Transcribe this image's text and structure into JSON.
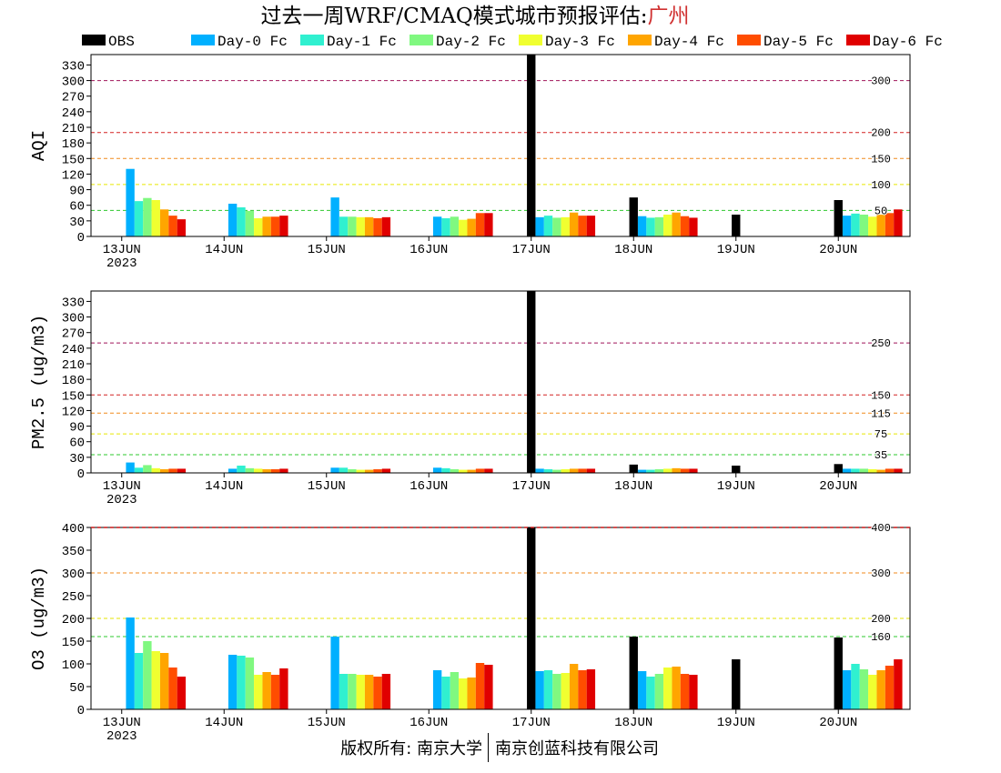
{
  "title": {
    "text": "过去一周WRF/CMAQ模式城市预报评估:",
    "city": "广州",
    "city_color": "#d03030"
  },
  "legend": {
    "placement": "top",
    "items": [
      {
        "name": "OBS",
        "color": "#000000"
      },
      {
        "name": "Day-0 Fc",
        "color": "#00b0ff"
      },
      {
        "name": "Day-1 Fc",
        "color": "#30f0d0"
      },
      {
        "name": "Day-2 Fc",
        "color": "#80f880"
      },
      {
        "name": "Day-3 Fc",
        "color": "#f0ff30"
      },
      {
        "name": "Day-4 Fc",
        "color": "#ffa500"
      },
      {
        "name": "Day-5 Fc",
        "color": "#ff4d00"
      },
      {
        "name": "Day-6 Fc",
        "color": "#e00000"
      }
    ]
  },
  "chart_data": [
    {
      "type": "bar",
      "ylabel": "AQI",
      "ylim": [
        0,
        350
      ],
      "yticks": [
        0,
        30,
        60,
        90,
        120,
        150,
        180,
        210,
        240,
        270,
        300,
        330
      ],
      "categories": [
        "13JUN",
        "14JUN",
        "15JUN",
        "16JUN",
        "17JUN",
        "18JUN",
        "19JUN",
        "20JUN"
      ],
      "year_label": "2023",
      "grid": false,
      "reference_lines": [
        {
          "value": 300,
          "label": "300",
          "color": "#a0145a"
        },
        {
          "value": 200,
          "label": "200",
          "color": "#d42020"
        },
        {
          "value": 150,
          "label": "150",
          "color": "#f08a1c"
        },
        {
          "value": 100,
          "label": "100",
          "color": "#e6e600"
        },
        {
          "value": 50,
          "label": "50",
          "color": "#2ec82e"
        }
      ],
      "series": [
        {
          "name": "OBS",
          "values": [
            null,
            null,
            null,
            null,
            350,
            75,
            42,
            70
          ]
        },
        {
          "name": "Day-0 Fc",
          "values": [
            130,
            63,
            75,
            38,
            37,
            39,
            null,
            40
          ]
        },
        {
          "name": "Day-1 Fc",
          "values": [
            68,
            56,
            38,
            35,
            40,
            36,
            null,
            44
          ]
        },
        {
          "name": "Day-2 Fc",
          "values": [
            74,
            49,
            38,
            38,
            36,
            37,
            null,
            42
          ]
        },
        {
          "name": "Day-3 Fc",
          "values": [
            70,
            35,
            37,
            32,
            37,
            42,
            null,
            38
          ]
        },
        {
          "name": "Day-4 Fc",
          "values": [
            52,
            38,
            37,
            34,
            46,
            46,
            null,
            42
          ]
        },
        {
          "name": "Day-5 Fc",
          "values": [
            40,
            38,
            35,
            45,
            40,
            39,
            null,
            45
          ]
        },
        {
          "name": "Day-6 Fc",
          "values": [
            33,
            40,
            37,
            45,
            40,
            36,
            null,
            52
          ]
        }
      ]
    },
    {
      "type": "bar",
      "ylabel": "PM2.5 (ug/m3)",
      "ylim": [
        0,
        350
      ],
      "yticks": [
        0,
        30,
        60,
        90,
        120,
        150,
        180,
        210,
        240,
        270,
        300,
        330
      ],
      "categories": [
        "13JUN",
        "14JUN",
        "15JUN",
        "16JUN",
        "17JUN",
        "18JUN",
        "19JUN",
        "20JUN"
      ],
      "year_label": "2023",
      "grid": false,
      "reference_lines": [
        {
          "value": 250,
          "label": "250",
          "color": "#a0145a"
        },
        {
          "value": 150,
          "label": "150",
          "color": "#d42020"
        },
        {
          "value": 115,
          "label": "115",
          "color": "#f08a1c"
        },
        {
          "value": 75,
          "label": "75",
          "color": "#e6e600"
        },
        {
          "value": 35,
          "label": "35",
          "color": "#2ec82e"
        }
      ],
      "series": [
        {
          "name": "OBS",
          "values": [
            null,
            null,
            null,
            null,
            350,
            16,
            14,
            17
          ]
        },
        {
          "name": "Day-0 Fc",
          "values": [
            20,
            8,
            10,
            10,
            8,
            6,
            null,
            8
          ]
        },
        {
          "name": "Day-1 Fc",
          "values": [
            10,
            14,
            10,
            9,
            7,
            6,
            null,
            8
          ]
        },
        {
          "name": "Day-2 Fc",
          "values": [
            15,
            9,
            7,
            7,
            6,
            7,
            null,
            8
          ]
        },
        {
          "name": "Day-3 Fc",
          "values": [
            9,
            8,
            6,
            6,
            7,
            8,
            null,
            7
          ]
        },
        {
          "name": "Day-4 Fc",
          "values": [
            7,
            7,
            6,
            6,
            8,
            9,
            null,
            6
          ]
        },
        {
          "name": "Day-5 Fc",
          "values": [
            8,
            7,
            7,
            8,
            8,
            8,
            null,
            8
          ]
        },
        {
          "name": "Day-6 Fc",
          "values": [
            8,
            8,
            8,
            8,
            8,
            8,
            null,
            8
          ]
        }
      ]
    },
    {
      "type": "bar",
      "ylabel": "O3 (ug/m3)",
      "ylim": [
        0,
        400
      ],
      "yticks": [
        0,
        50,
        100,
        150,
        200,
        250,
        300,
        350,
        400
      ],
      "categories": [
        "13JUN",
        "14JUN",
        "15JUN",
        "16JUN",
        "17JUN",
        "18JUN",
        "19JUN",
        "20JUN"
      ],
      "year_label": "2023",
      "grid": false,
      "reference_lines": [
        {
          "value": 400,
          "label": "400",
          "color": "#c81818"
        },
        {
          "value": 300,
          "label": "300",
          "color": "#f08a1c"
        },
        {
          "value": 200,
          "label": "200",
          "color": "#e6e600"
        },
        {
          "value": 160,
          "label": "160",
          "color": "#2ec82e"
        }
      ],
      "series": [
        {
          "name": "OBS",
          "values": [
            null,
            null,
            null,
            null,
            400,
            160,
            110,
            158
          ]
        },
        {
          "name": "Day-0 Fc",
          "values": [
            202,
            120,
            160,
            86,
            84,
            84,
            null,
            86
          ]
        },
        {
          "name": "Day-1 Fc",
          "values": [
            124,
            118,
            78,
            72,
            86,
            72,
            null,
            100
          ]
        },
        {
          "name": "Day-2 Fc",
          "values": [
            150,
            114,
            78,
            82,
            78,
            78,
            null,
            88
          ]
        },
        {
          "name": "Day-3 Fc",
          "values": [
            128,
            76,
            76,
            68,
            80,
            92,
            null,
            76
          ]
        },
        {
          "name": "Day-4 Fc",
          "values": [
            124,
            82,
            76,
            70,
            100,
            94,
            null,
            86
          ]
        },
        {
          "name": "Day-5 Fc",
          "values": [
            92,
            76,
            72,
            102,
            86,
            78,
            null,
            96
          ]
        },
        {
          "name": "Day-6 Fc",
          "values": [
            72,
            90,
            78,
            98,
            88,
            76,
            null,
            110
          ]
        }
      ]
    }
  ],
  "footer": {
    "left": "版权所有: 南京大学",
    "right": "南京创蓝科技有限公司"
  }
}
